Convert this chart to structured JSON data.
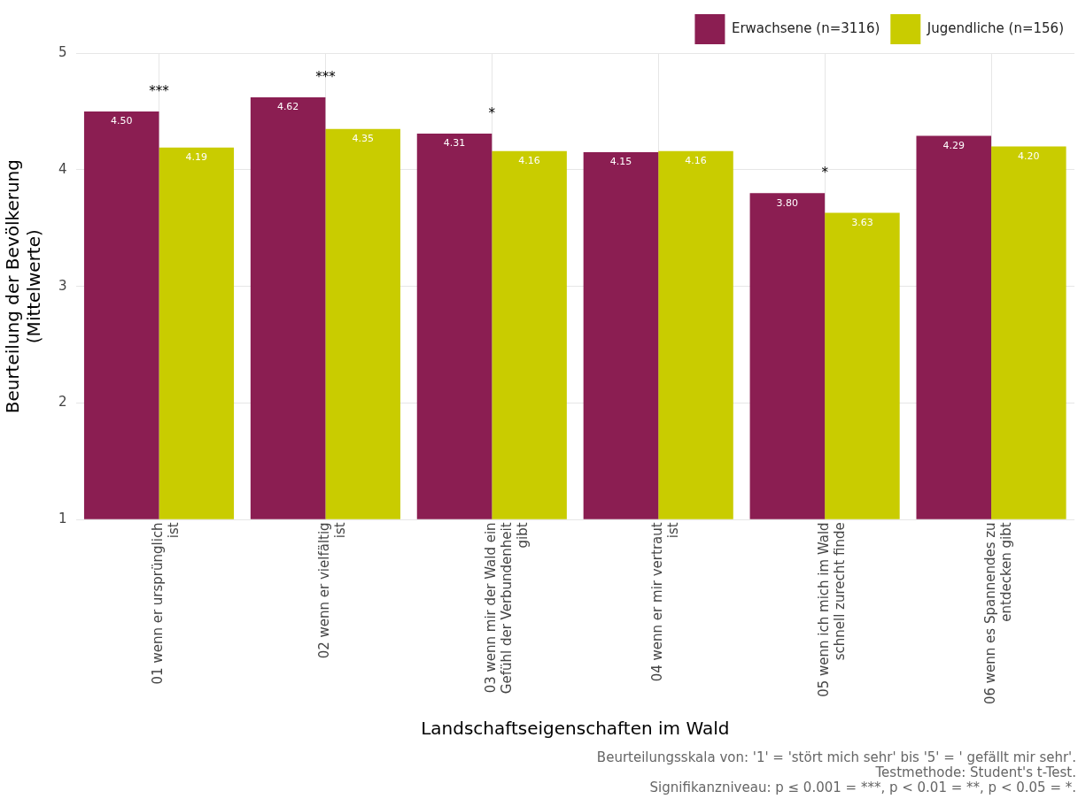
{
  "chart_data": {
    "type": "bar",
    "xlabel": "Landschaftseigenschaften im Wald",
    "ylabel": "Beurteilung der Bevölkerung (Mittelwerte)",
    "categories": [
      "01 wenn er ursprünglich ist",
      "02 wenn er vielfältig ist",
      "03 wenn mir der Wald ein Gefühl der Verbundenheit gibt",
      "04 wenn er mir vertraut ist",
      "05 wenn ich mich im Wald schnell zurecht finde",
      "06 wenn es Spannendes zu entdecken gibt"
    ],
    "series": [
      {
        "name": "Erwachsene (n=3116)",
        "color": "#8b1e52",
        "values": [
          4.5,
          4.62,
          4.31,
          4.15,
          3.8,
          4.29
        ],
        "value_labels": [
          "4.50",
          "4.62",
          "4.31",
          "4.15",
          "3.80",
          "4.29"
        ]
      },
      {
        "name": "Jugendliche (n=156)",
        "color": "#c9cc00",
        "values": [
          4.19,
          4.35,
          4.16,
          4.16,
          3.63,
          4.2
        ],
        "value_labels": [
          "4.19",
          "4.35",
          "4.16",
          "4.16",
          "3.63",
          "4.20"
        ]
      }
    ],
    "ylim": [
      1,
      5
    ],
    "yticks": [
      1,
      2,
      3,
      4,
      5
    ],
    "grid": true,
    "legend": "top right",
    "annotations": [
      "***",
      "***",
      "*",
      "*",
      "Beurteilungsskala von: '1' = 'stört mich sehr' bis '5' = ' gefällt mir sehr'.",
      "Testmethode: Student's t-Test.",
      "Signifikanzniveau: p ≤ 0.001 = ***, p < 0.01 = **, p < 0.05 = *."
    ]
  }
}
